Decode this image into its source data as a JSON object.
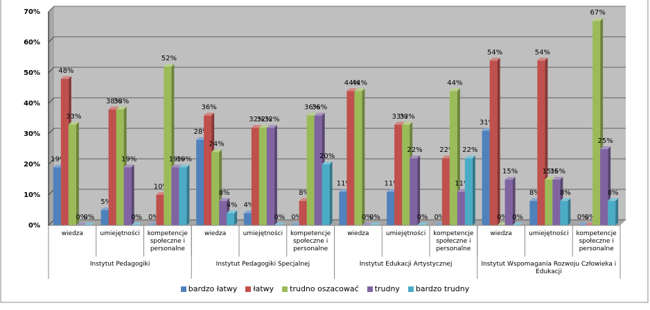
{
  "chart_data": {
    "type": "bar",
    "groups": [
      "Instytut Pedagogiki",
      "Instytut Pedagogiki Specjalnej",
      "Instytut Edukacji Artystycznej",
      "Instytut Wspomagania Rozwoju Człowieka i Edukacji"
    ],
    "categories": [
      "wiedza",
      "umiejętności",
      "kompetencje społeczne i personalne",
      "wiedza",
      "umiejętności",
      "kompetencje społeczne i personalne",
      "wiedza",
      "umiejętności",
      "kompetencje społeczne i personalne",
      "wiedza",
      "umiejętności",
      "kompetencje społeczne i personalne"
    ],
    "series": [
      {
        "name": "bardzo łatwy",
        "color": "#4f81bd",
        "values": [
          19,
          5,
          0,
          28,
          4,
          0,
          11,
          11,
          0,
          31,
          8,
          0
        ],
        "value_labels": [
          "19%",
          "5%",
          "0%",
          "28%",
          "4%",
          "0%",
          "11%",
          "11%",
          "0%",
          "31%",
          "8%",
          "0%"
        ]
      },
      {
        "name": "łatwy",
        "color": "#c0504d",
        "values": [
          48,
          38,
          10,
          36,
          32,
          8,
          44,
          33,
          22,
          54,
          54,
          0
        ],
        "value_labels": [
          "48%",
          "38%",
          "10%",
          "36%",
          "32%",
          "8%",
          "44%",
          "33%",
          "22%",
          "54%",
          "54%",
          "0%"
        ]
      },
      {
        "name": "trudno oszacować",
        "color": "#9bbb59",
        "values": [
          33,
          38,
          52,
          24,
          32,
          36,
          44,
          33,
          44,
          0,
          15,
          67
        ],
        "value_labels": [
          "33%",
          "38%",
          "52%",
          "24%",
          "32%",
          "36%",
          "44%",
          "33%",
          "44%",
          "0%",
          "15%",
          "67%"
        ]
      },
      {
        "name": "trudny",
        "color": "#8064a2",
        "values": [
          0,
          19,
          19,
          8,
          32,
          36,
          0,
          22,
          11,
          15,
          15,
          25
        ],
        "value_labels": [
          "0%",
          "19%",
          "19%",
          "8%",
          "32%",
          "36%",
          "0%",
          "22%",
          "11%",
          "15%",
          "15%",
          "25%"
        ]
      },
      {
        "name": "bardzo trudny",
        "color": "#4bacc6",
        "values": [
          0,
          0,
          19,
          4,
          0,
          20,
          0,
          0,
          22,
          0,
          8,
          8
        ],
        "value_labels": [
          "0%",
          "0%",
          "19%",
          "4%",
          "0%",
          "20%",
          "0%",
          "0%",
          "22%",
          "0%",
          "8%",
          "8%"
        ]
      }
    ],
    "ylim": [
      0,
      70
    ],
    "yticks": [
      {
        "value": 0,
        "label": "0%"
      },
      {
        "value": 10,
        "label": "10%"
      },
      {
        "value": 20,
        "label": "20%"
      },
      {
        "value": 30,
        "label": "30%"
      },
      {
        "value": 40,
        "label": "40%"
      },
      {
        "value": 50,
        "label": "50%"
      },
      {
        "value": 60,
        "label": "60%"
      },
      {
        "value": 70,
        "label": "70%"
      }
    ],
    "grid": true,
    "legend": "bottom"
  }
}
